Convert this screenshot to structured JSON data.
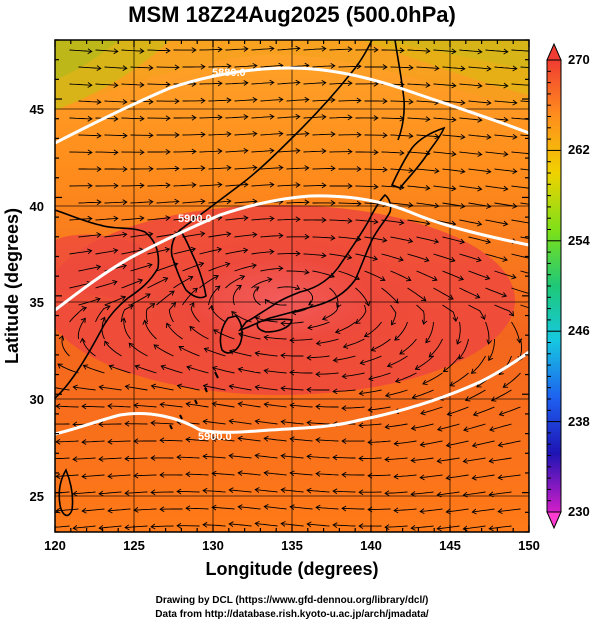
{
  "title": "MSM 18Z24Aug2025 (500.0hPa)",
  "x_axis": {
    "label": "Longitude (degrees)",
    "ticks": [
      "120",
      "125",
      "130",
      "135",
      "140",
      "145",
      "150"
    ]
  },
  "y_axis": {
    "label": "Latitude  (degrees)",
    "ticks": [
      "25",
      "30",
      "35",
      "40",
      "45"
    ]
  },
  "colorbar": {
    "ticks": [
      "270",
      "262",
      "254",
      "246",
      "238",
      "230"
    ]
  },
  "contours": [
    {
      "label": "5880.0"
    },
    {
      "label": "5900.0"
    },
    {
      "label": "5900.0"
    }
  ],
  "footer": {
    "line1": "Drawing by DCL (https://www.gfd-dennou.org/library/dcl/)",
    "line2": "Data from http://database.rish.kyoto-u.ac.jp/arch/jmadata/"
  },
  "map_data": {
    "lon_range": [
      120,
      150
    ],
    "lat_range": [
      23,
      48
    ],
    "variable_range": [
      230,
      270
    ],
    "contour_values": [
      5880.0,
      5900.0,
      5900.0
    ],
    "high_center": {
      "lon": 133,
      "lat": 35.5
    },
    "colors": {
      "warm_core": "#f05050",
      "orange": "#ff8a1a",
      "yellow": "#e8c000",
      "green": "#58d61e",
      "coast": "#000000",
      "contour": "#ffffff",
      "streamline": "#000000"
    }
  }
}
